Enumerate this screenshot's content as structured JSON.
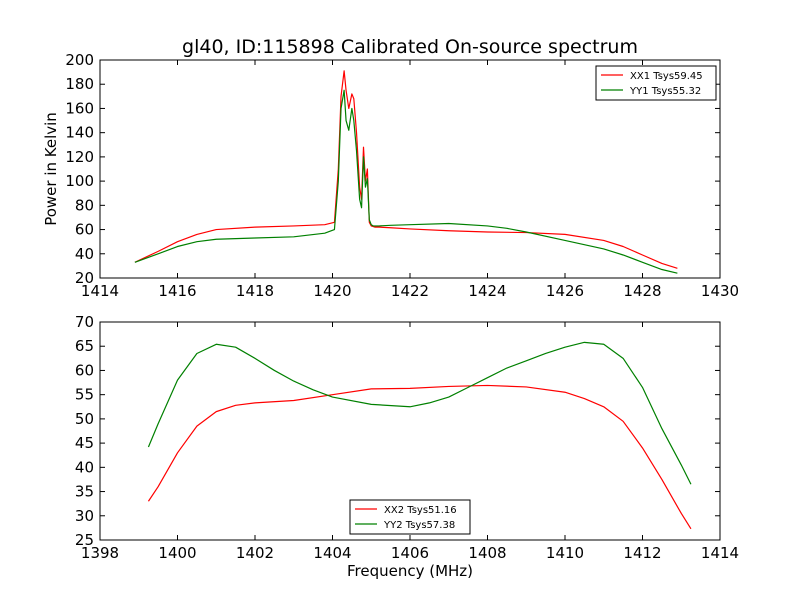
{
  "figure": {
    "title": "gl40, ID:115898 Calibrated On-source spectrum"
  },
  "chart_data": [
    {
      "type": "line",
      "title": "gl40, ID:115898 Calibrated On-source spectrum",
      "xlabel": "",
      "ylabel": "Power in Kelvin",
      "xlim": [
        1414,
        1430
      ],
      "ylim": [
        20,
        200
      ],
      "xticks": [
        1414,
        1416,
        1418,
        1420,
        1422,
        1424,
        1426,
        1428,
        1430
      ],
      "yticks": [
        20,
        40,
        60,
        80,
        100,
        120,
        140,
        160,
        180,
        200
      ],
      "grid": false,
      "legend_position": "top-right",
      "series": [
        {
          "name": "XX1 Tsys59.45",
          "color": "#ff0000",
          "x": [
            1414.9,
            1415.5,
            1416.0,
            1416.5,
            1417.0,
            1418.0,
            1419.0,
            1419.8,
            1420.05,
            1420.15,
            1420.22,
            1420.3,
            1420.35,
            1420.42,
            1420.5,
            1420.55,
            1420.62,
            1420.7,
            1420.75,
            1420.8,
            1420.85,
            1420.9,
            1420.95,
            1421.0,
            1421.05,
            1421.1,
            1421.2,
            1421.5,
            1422.0,
            1423.0,
            1424.0,
            1425.0,
            1426.0,
            1427.0,
            1427.5,
            1428.0,
            1428.5,
            1428.9
          ],
          "y": [
            33,
            42,
            50,
            56,
            60,
            62,
            63,
            64,
            66,
            110,
            170,
            191,
            175,
            160,
            172,
            168,
            140,
            95,
            85,
            128,
            100,
            110,
            66,
            63,
            62.5,
            62,
            62,
            61.5,
            60.5,
            59,
            58,
            57.5,
            56,
            51,
            46,
            39,
            32,
            28
          ]
        },
        {
          "name": "YY1 Tsys55.32",
          "color": "#008000",
          "x": [
            1414.9,
            1415.5,
            1416.0,
            1416.5,
            1417.0,
            1418.0,
            1419.0,
            1419.8,
            1420.05,
            1420.15,
            1420.22,
            1420.3,
            1420.35,
            1420.42,
            1420.5,
            1420.55,
            1420.62,
            1420.7,
            1420.75,
            1420.8,
            1420.85,
            1420.9,
            1420.95,
            1421.0,
            1421.05,
            1421.1,
            1421.2,
            1421.5,
            1422.0,
            1423.0,
            1424.0,
            1424.5,
            1425.0,
            1426.0,
            1427.0,
            1427.5,
            1428.0,
            1428.5,
            1428.9
          ],
          "y": [
            33,
            40,
            46,
            50,
            52,
            53,
            54,
            57,
            60,
            100,
            160,
            175,
            150,
            142,
            160,
            150,
            125,
            85,
            78,
            120,
            95,
            102,
            68,
            64,
            63,
            63,
            63,
            63.5,
            64,
            65,
            63,
            61,
            58,
            51,
            44,
            39,
            33,
            27,
            24
          ]
        }
      ]
    },
    {
      "type": "line",
      "title": "",
      "xlabel": "Frequency (MHz)",
      "ylabel": "",
      "xlim": [
        1398,
        1414
      ],
      "ylim": [
        25,
        70
      ],
      "xticks": [
        1398,
        1400,
        1402,
        1404,
        1406,
        1408,
        1410,
        1412,
        1414
      ],
      "yticks": [
        25,
        30,
        35,
        40,
        45,
        50,
        55,
        60,
        65,
        70
      ],
      "grid": false,
      "legend_position": "lower-center",
      "series": [
        {
          "name": "XX2 Tsys51.16",
          "color": "#ff0000",
          "x": [
            1399.25,
            1399.5,
            1400.0,
            1400.5,
            1401.0,
            1401.5,
            1402.0,
            1403.0,
            1404.0,
            1405.0,
            1406.0,
            1407.0,
            1408.0,
            1409.0,
            1410.0,
            1410.5,
            1411.0,
            1411.5,
            1412.0,
            1412.5,
            1413.0,
            1413.25
          ],
          "y": [
            33,
            36,
            43,
            48.5,
            51.5,
            52.8,
            53.3,
            53.8,
            55.0,
            56.2,
            56.3,
            56.7,
            56.9,
            56.6,
            55.5,
            54.2,
            52.5,
            49.5,
            44.0,
            37.5,
            30.5,
            27.3
          ]
        },
        {
          "name": "YY2 Tsys57.38",
          "color": "#008000",
          "x": [
            1399.25,
            1399.5,
            1400.0,
            1400.5,
            1401.0,
            1401.5,
            1402.0,
            1402.5,
            1403.0,
            1403.5,
            1404.0,
            1405.0,
            1406.0,
            1406.5,
            1407.0,
            1407.5,
            1408.0,
            1408.5,
            1409.0,
            1409.5,
            1410.0,
            1410.5,
            1411.0,
            1411.5,
            1412.0,
            1412.5,
            1413.0,
            1413.25
          ],
          "y": [
            44.2,
            49.0,
            58.0,
            63.5,
            65.4,
            64.8,
            62.5,
            60.0,
            57.8,
            56.0,
            54.5,
            53.0,
            52.5,
            53.3,
            54.5,
            56.5,
            58.5,
            60.5,
            62.0,
            63.5,
            64.8,
            65.8,
            65.4,
            62.5,
            56.5,
            48.0,
            40.5,
            36.5
          ]
        }
      ]
    }
  ]
}
